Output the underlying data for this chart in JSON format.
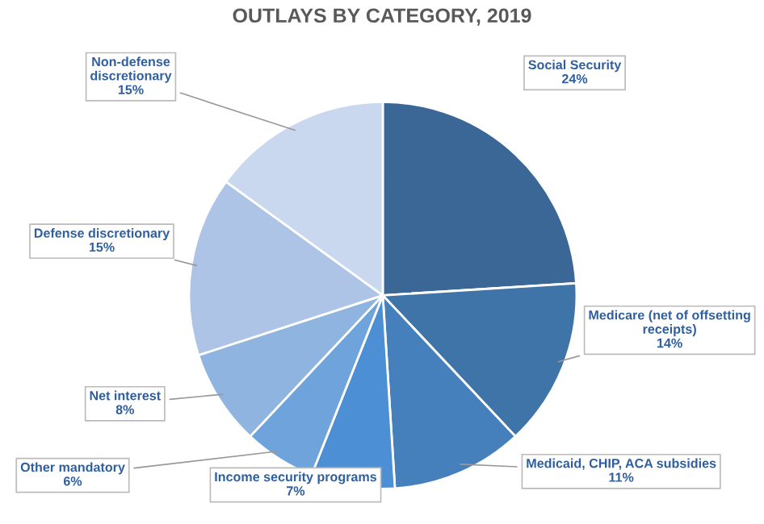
{
  "chart_data": {
    "type": "pie",
    "title": "OUTLAYS BY CATEGORY, 2019",
    "categories": [
      "Social Security",
      "Medicare (net of offsetting\nreceipts)",
      "Medicaid, CHIP, ACA subsidies",
      "Income security programs",
      "Other mandatory",
      "Net interest",
      "Defense discretionary",
      "Non-defense\ndiscretionary"
    ],
    "values": [
      24,
      14,
      11,
      7,
      6,
      8,
      15,
      15
    ],
    "value_labels": [
      "24%",
      "14%",
      "11%",
      "7%",
      "6%",
      "8%",
      "15%",
      "15%"
    ],
    "colors": [
      "#3a6796",
      "#3f74a8",
      "#4580bd",
      "#4d8fd4",
      "#6ea3db",
      "#8fb4e0",
      "#adc4e6",
      "#c9d8ee"
    ]
  }
}
